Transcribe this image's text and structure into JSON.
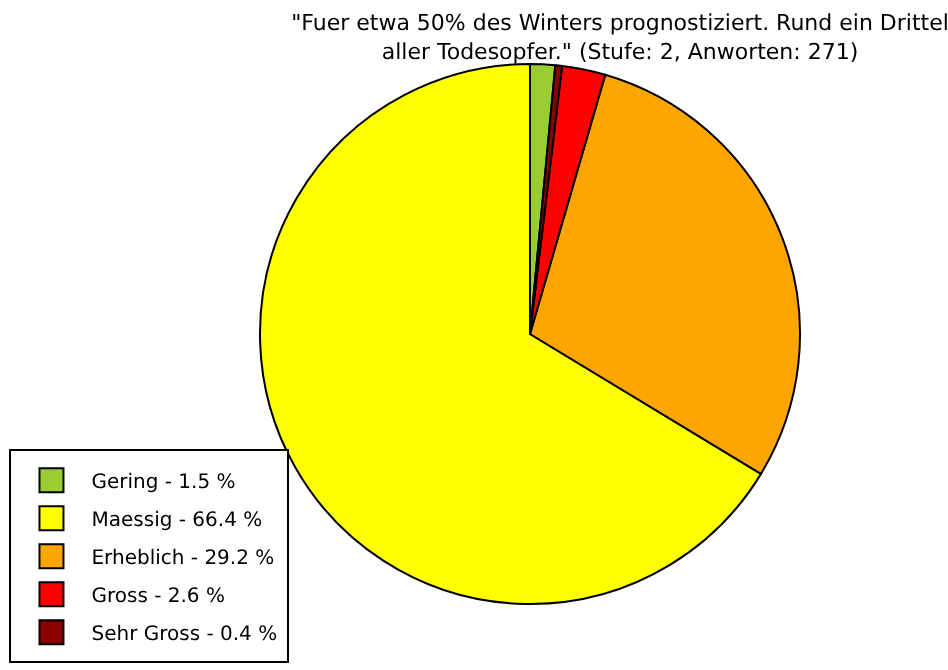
{
  "chart_data": {
    "type": "pie",
    "title": "\"Fuer etwa 50% des Winters prognostiziert. Rund ein Drittel aller Todesopfer.\" (Stufe: 2, Anworten: 271)",
    "categories": [
      "Gering - 1.5 %",
      "Maessig - 66.4 %",
      "Erheblich - 29.2 %",
      "Gross - 2.6 %",
      "Sehr Gross - 0.4 %"
    ],
    "values": [
      1.5,
      66.4,
      29.2,
      2.6,
      0.4
    ],
    "colors": [
      "#9acd32",
      "#ffff00",
      "#ffa500",
      "#ff0000",
      "#8b0000"
    ],
    "legend": "bottom left"
  }
}
